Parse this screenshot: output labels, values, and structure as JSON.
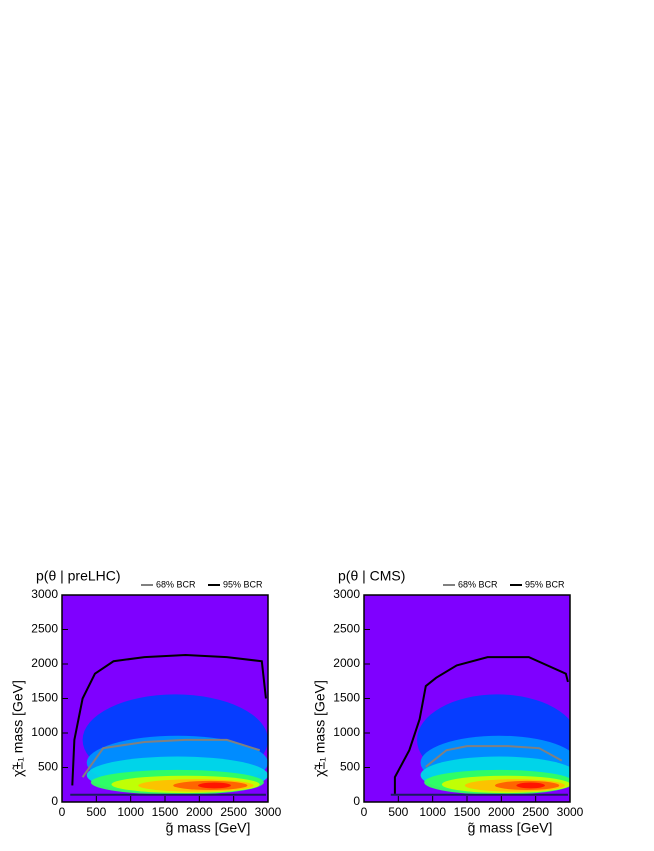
{
  "chart_data": [
    {
      "type": "heatmap",
      "title": "p(θ | preLHC)",
      "x_label": "g̃ mass [GeV]",
      "y_label": "χ̃±₁ mass [GeV]",
      "xlim": [
        0,
        3000
      ],
      "ylim": [
        0,
        3000
      ],
      "xticks": [
        0,
        500,
        1000,
        1500,
        2000,
        2500,
        3000
      ],
      "yticks": [
        0,
        500,
        1000,
        1500,
        2000,
        2500,
        3000
      ],
      "legend": [
        {
          "name": "68% BCR",
          "color": "#808080"
        },
        {
          "name": "95% BCR",
          "color": "#000000"
        }
      ]
    },
    {
      "type": "heatmap",
      "title": "p(θ | CMS)",
      "x_label": "g̃ mass [GeV]",
      "y_label": "χ̃±₁ mass [GeV]",
      "xlim": [
        0,
        3000
      ],
      "ylim": [
        0,
        3000
      ],
      "xticks": [
        0,
        500,
        1000,
        1500,
        2000,
        2500,
        3000
      ],
      "yticks": [
        0,
        500,
        1000,
        1500,
        2000,
        2500,
        3000
      ],
      "legend": [
        {
          "name": "68% BCR",
          "color": "#808080"
        },
        {
          "name": "95% BCR",
          "color": "#000000"
        }
      ]
    }
  ]
}
